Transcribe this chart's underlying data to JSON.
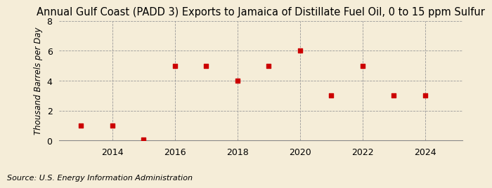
{
  "title": "Annual Gulf Coast (PADD 3) Exports to Jamaica of Distillate Fuel Oil, 0 to 15 ppm Sulfur",
  "ylabel": "Thousand Barrels per Day",
  "source": "Source: U.S. Energy Information Administration",
  "years": [
    2013,
    2014,
    2015,
    2016,
    2017,
    2018,
    2019,
    2020,
    2021,
    2022,
    2023,
    2024
  ],
  "values": [
    1,
    1,
    0.05,
    5,
    5,
    4,
    5,
    6,
    3,
    5,
    3,
    3
  ],
  "ylim": [
    0,
    8
  ],
  "yticks": [
    0,
    2,
    4,
    6,
    8
  ],
  "xlim": [
    2012.3,
    2025.2
  ],
  "xticks": [
    2014,
    2016,
    2018,
    2020,
    2022,
    2024
  ],
  "marker_color": "#cc0000",
  "marker": "s",
  "marker_size": 4,
  "bg_color": "#f5edd8",
  "grid_color": "#999999",
  "title_fontsize": 10.5,
  "label_fontsize": 8.5,
  "tick_fontsize": 9,
  "source_fontsize": 8
}
